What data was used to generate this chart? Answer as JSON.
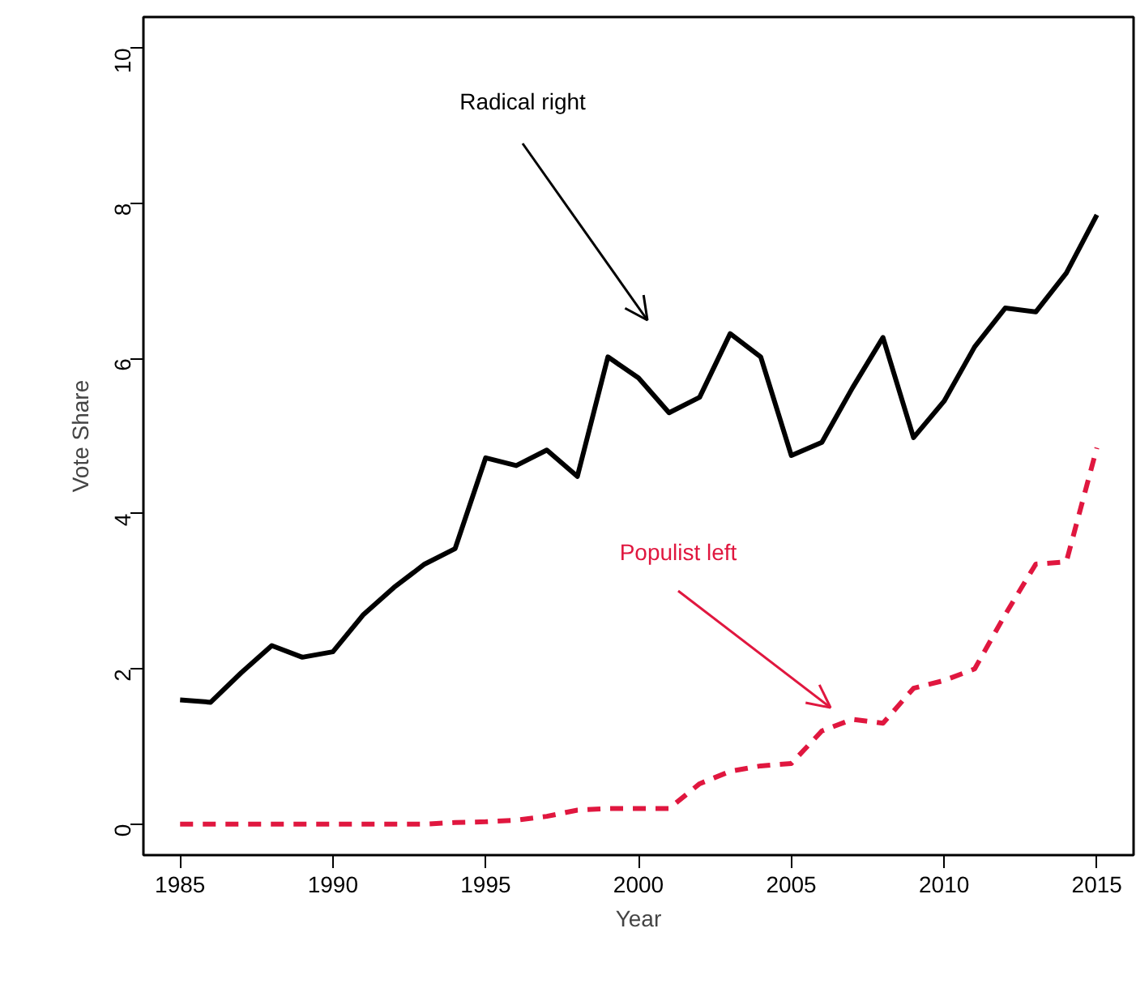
{
  "chart_data": {
    "type": "line",
    "xlabel": "Year",
    "ylabel": "Vote Share",
    "x": [
      1985,
      1986,
      1987,
      1988,
      1989,
      1990,
      1991,
      1992,
      1993,
      1994,
      1995,
      1996,
      1997,
      1998,
      1999,
      2000,
      2001,
      2002,
      2003,
      2004,
      2005,
      2006,
      2007,
      2008,
      2009,
      2010,
      2011,
      2012,
      2013,
      2014,
      2015
    ],
    "series": [
      {
        "color": "#000000",
        "line_style": "solid",
        "values": [
          1.6,
          1.57,
          1.95,
          2.3,
          2.15,
          2.22,
          2.7,
          3.05,
          3.35,
          3.55,
          4.72,
          4.62,
          4.82,
          4.48,
          6.02,
          5.75,
          5.3,
          5.5,
          6.32,
          6.02,
          4.75,
          4.92,
          5.62,
          6.27,
          4.98,
          5.45,
          6.15,
          6.65,
          6.6,
          7.1,
          7.85
        ]
      },
      {
        "color": "#e0173f",
        "line_style": "dashed",
        "values": [
          0,
          0,
          0,
          0,
          0,
          0,
          0,
          0,
          0,
          0.02,
          0.03,
          0.05,
          0.1,
          0.18,
          0.2,
          0.2,
          0.2,
          0.52,
          0.68,
          0.75,
          0.78,
          1.2,
          1.35,
          1.3,
          1.75,
          1.85,
          2.0,
          2.7,
          3.35,
          3.38,
          4.85
        ]
      }
    ],
    "annotations": [
      "Radical right",
      "Populist left"
    ],
    "xlim": [
      1983.8,
      2016.2
    ],
    "ylim": [
      -0.4,
      10.4
    ],
    "xticks": [
      1985,
      1990,
      1995,
      2000,
      2005,
      2010,
      2015
    ],
    "yticks": [
      0,
      2,
      4,
      6,
      8,
      10
    ]
  }
}
